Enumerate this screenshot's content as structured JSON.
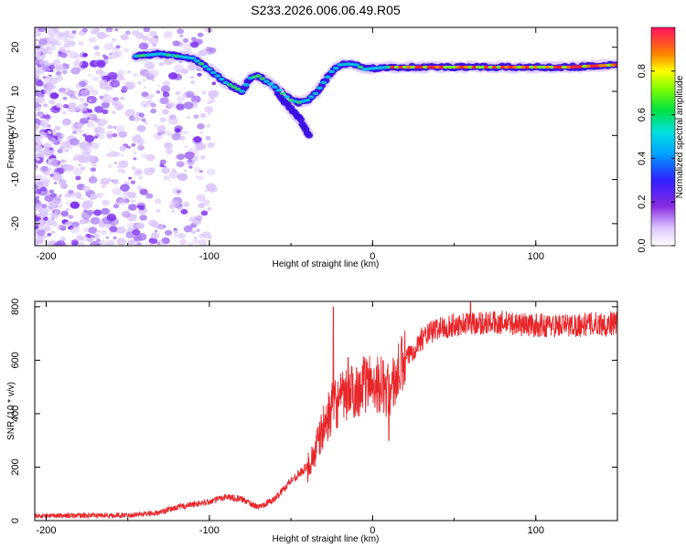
{
  "title": "S233.2026.006.06.49.R05",
  "chart_data": [
    {
      "type": "heatmap",
      "name": "spectrogram",
      "xlabel": "Height of straight line (km)",
      "ylabel": "Frequency (Hz)",
      "xlim": [
        -207,
        150
      ],
      "ylim": [
        -25,
        24.5
      ],
      "xticks": [
        -200,
        -100,
        0,
        100
      ],
      "yticks": [
        -20,
        -10,
        0,
        10,
        20
      ],
      "colorbar": {
        "label": "Normalized spectral amplitude",
        "range": [
          0,
          1
        ],
        "ticks": [
          "0.0",
          "0.2",
          "0.4",
          "0.6",
          "0.8"
        ]
      },
      "ridge": {
        "x": [
          -145,
          -130,
          -120,
          -110,
          -100,
          -90,
          -80,
          -75,
          -70,
          -60,
          -50,
          -45,
          -40,
          -35,
          -30,
          -25,
          -20,
          -15,
          -10,
          -5,
          0,
          10,
          20,
          40,
          60,
          80,
          100,
          120,
          150
        ],
        "y": [
          18,
          18.5,
          18,
          17.5,
          15,
          12,
          10,
          13,
          13.5,
          11,
          8,
          7.5,
          8,
          9.5,
          12,
          14.5,
          16,
          16.2,
          16,
          15,
          15.2,
          15.5,
          15.5,
          15.5,
          15.5,
          15.5,
          15.5,
          15.5,
          16
        ]
      },
      "branch": {
        "x": [
          -60,
          -55,
          -50,
          -45,
          -42,
          -39
        ],
        "y": [
          11,
          8,
          6,
          4,
          2,
          0
        ]
      }
    },
    {
      "type": "line",
      "name": "snr",
      "xlabel": "Height of straight line (km)",
      "ylabel": "SNR (10 * v/v)",
      "xlim": [
        -207,
        150
      ],
      "ylim": [
        0,
        820
      ],
      "xticks": [
        -200,
        -100,
        0,
        100
      ],
      "yticks": [
        0,
        200,
        400,
        600,
        800
      ],
      "color": "#e8262a",
      "envelope": {
        "x": [
          -207,
          -150,
          -130,
          -120,
          -100,
          -90,
          -80,
          -70,
          -60,
          -50,
          -40,
          -35,
          -30,
          -25,
          -20,
          -15,
          -10,
          -5,
          0,
          5,
          10,
          15,
          20,
          30,
          40,
          60,
          80,
          100,
          120,
          150
        ],
        "y": [
          18,
          20,
          30,
          50,
          70,
          90,
          80,
          50,
          80,
          150,
          200,
          260,
          350,
          420,
          450,
          470,
          490,
          510,
          520,
          510,
          480,
          540,
          600,
          680,
          720,
          740,
          740,
          730,
          730,
          740
        ]
      },
      "noise_amplitude": 25,
      "spikes": [
        {
          "x": -24,
          "y": 800
        },
        {
          "x": -15,
          "y": 610
        },
        {
          "x": 10,
          "y": 300
        },
        {
          "x": 60,
          "y": 820
        },
        {
          "x": 143,
          "y": 690
        }
      ]
    }
  ]
}
